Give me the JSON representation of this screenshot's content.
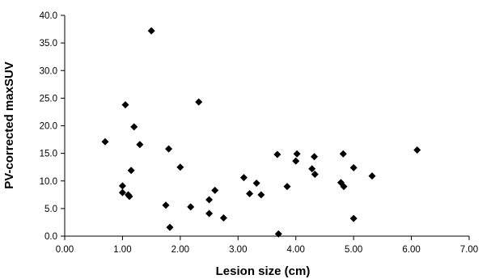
{
  "chart_data": {
    "type": "scatter",
    "title": "",
    "xlabel": "Lesion size (cm)",
    "ylabel": "PV-corrected maxSUV",
    "xlim": [
      0,
      7
    ],
    "ylim": [
      0,
      40
    ],
    "x_ticks": [
      "0.00",
      "1.00",
      "2.00",
      "3.00",
      "4.00",
      "5.00",
      "6.00",
      "7.00"
    ],
    "y_ticks": [
      "0.0",
      "5.0",
      "10.0",
      "15.0",
      "20.0",
      "25.0",
      "30.0",
      "35.0",
      "40.0"
    ],
    "grid": false,
    "marker": "diamond",
    "marker_color": "#000000",
    "series": [
      {
        "points": [
          [
            0.7,
            17.1
          ],
          [
            1.0,
            9.1
          ],
          [
            1.0,
            7.9
          ],
          [
            1.05,
            23.8
          ],
          [
            1.1,
            7.5
          ],
          [
            1.12,
            7.2
          ],
          [
            1.15,
            11.9
          ],
          [
            1.2,
            19.8
          ],
          [
            1.3,
            16.6
          ],
          [
            1.5,
            37.2
          ],
          [
            1.75,
            5.6
          ],
          [
            1.8,
            15.8
          ],
          [
            1.82,
            1.6
          ],
          [
            2.0,
            12.5
          ],
          [
            2.18,
            5.3
          ],
          [
            2.32,
            24.3
          ],
          [
            2.5,
            6.6
          ],
          [
            2.5,
            4.1
          ],
          [
            2.6,
            8.3
          ],
          [
            2.75,
            3.3
          ],
          [
            3.1,
            10.6
          ],
          [
            3.2,
            7.7
          ],
          [
            3.32,
            9.6
          ],
          [
            3.4,
            7.5
          ],
          [
            3.68,
            14.8
          ],
          [
            3.7,
            0.4
          ],
          [
            3.85,
            9.0
          ],
          [
            4.0,
            13.6
          ],
          [
            4.02,
            14.9
          ],
          [
            4.28,
            12.2
          ],
          [
            4.32,
            14.4
          ],
          [
            4.33,
            11.2
          ],
          [
            4.78,
            9.7
          ],
          [
            4.82,
            14.9
          ],
          [
            4.83,
            9.0
          ],
          [
            5.0,
            12.4
          ],
          [
            5.0,
            3.2
          ],
          [
            5.32,
            10.9
          ],
          [
            6.1,
            15.6
          ]
        ]
      }
    ]
  }
}
